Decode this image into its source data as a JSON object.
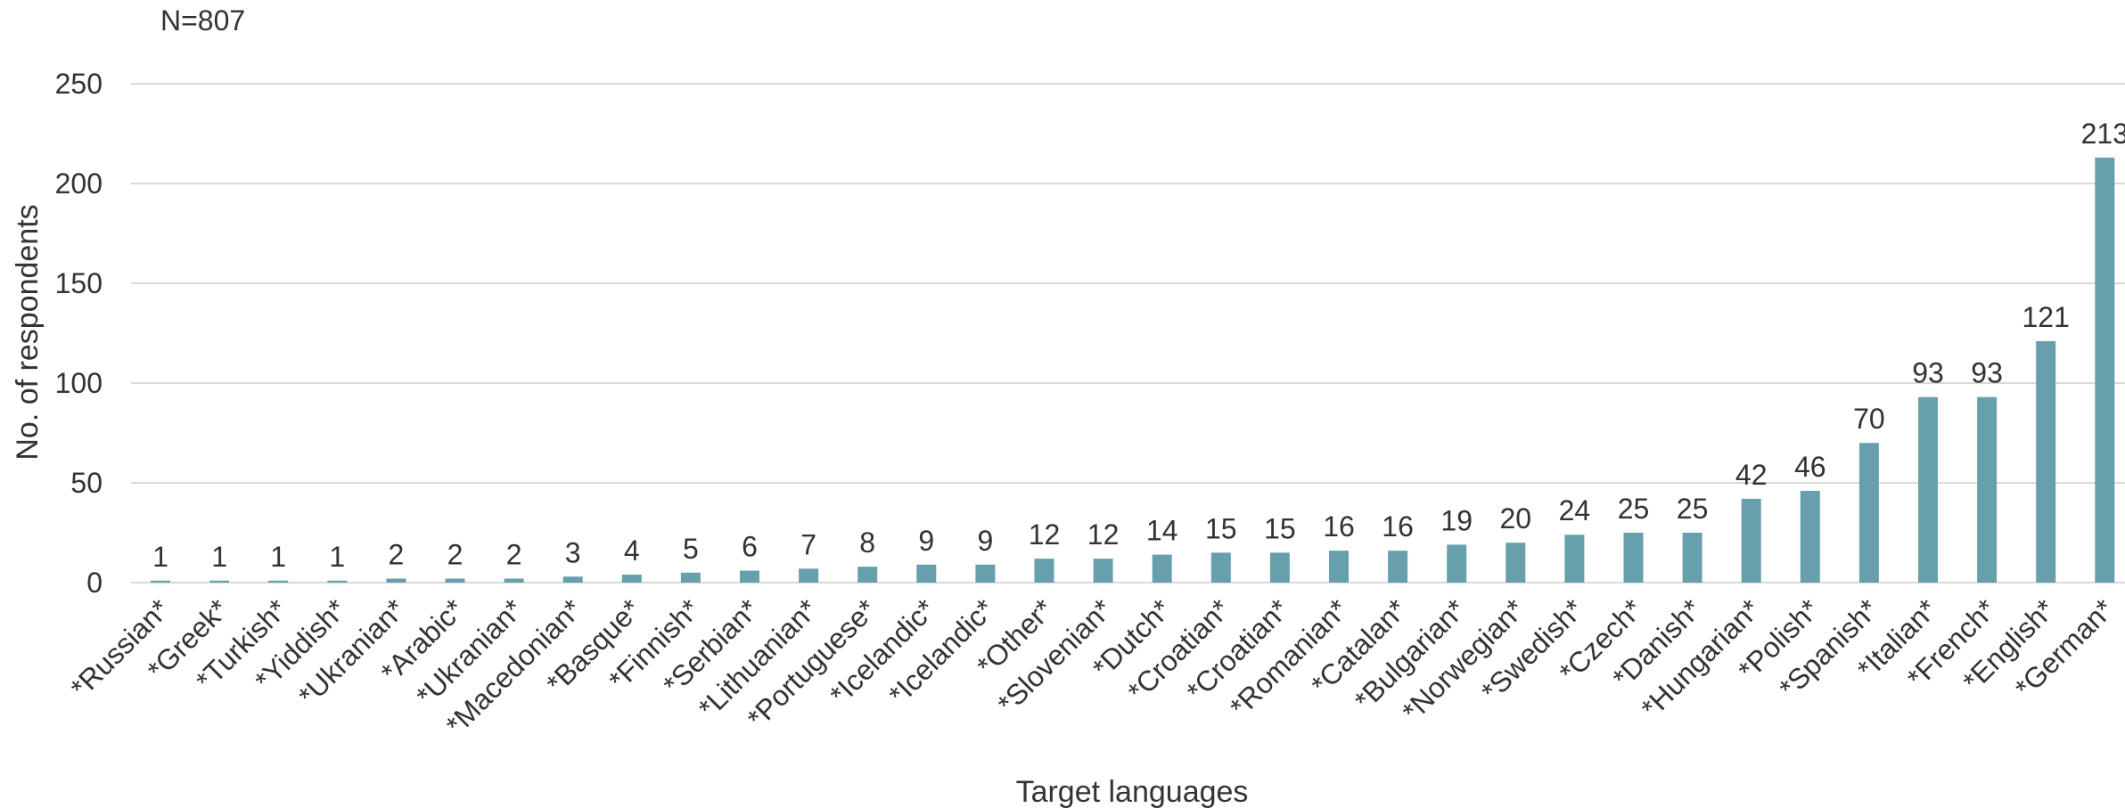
{
  "chart_data": {
    "type": "bar",
    "note": "N=807",
    "xlabel": "Target languages",
    "ylabel": "No. of respondents",
    "ylim": [
      0,
      250
    ],
    "yticks": [
      "0",
      "50",
      "100",
      "150",
      "200",
      "250"
    ],
    "grid": true,
    "legend": "none",
    "bar_color": "#67a0ac",
    "categories": [
      "*Russian*",
      "*Greek*",
      "*Turkish*",
      "*Yiddish*",
      "*Ukranian*",
      "*Arabic*",
      "*Ukranian*",
      "*Macedonian*",
      "*Basque*",
      "*Finnish*",
      "*Serbian*",
      "*Lithuanian*",
      "*Portuguese*",
      "*Icelandic*",
      "*Icelandic*",
      "*Other*",
      "*Slovenian*",
      "*Dutch*",
      "*Croatian*",
      "*Croatian*",
      "*Romanian*",
      "*Catalan*",
      "*Bulgarian*",
      "*Norwegian*",
      "*Swedish*",
      "*Czech*",
      "*Danish*",
      "*Hungarian*",
      "*Polish*",
      "*Spanish*",
      "*Italian*",
      "*French*",
      "*English*",
      "*German*"
    ],
    "values": [
      1,
      1,
      1,
      1,
      2,
      2,
      2,
      3,
      4,
      5,
      6,
      7,
      8,
      9,
      9,
      12,
      12,
      14,
      15,
      15,
      16,
      16,
      19,
      20,
      24,
      25,
      25,
      42,
      46,
      70,
      93,
      93,
      121,
      213
    ]
  }
}
